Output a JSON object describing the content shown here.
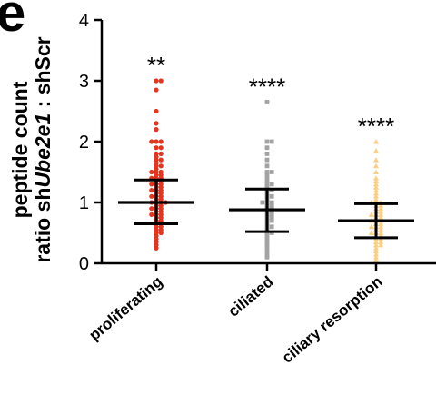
{
  "panel_label": "e",
  "chart_data": {
    "type": "scatter",
    "plot_style": "dot plot with mean and SD bars",
    "ylabel_line1": "peptide count",
    "ylabel_line2_prefix": "ratio sh",
    "ylabel_line2_gene": "Ube2e1",
    "ylabel_line2_suffix": " : shScr",
    "ylim": [
      0,
      4
    ],
    "yticks": [
      "0",
      "1",
      "2",
      "3",
      "4"
    ],
    "categories": [
      "proliferating",
      "ciliated",
      "ciliary resorption"
    ],
    "series": [
      {
        "mean": 1.0,
        "sd_low": 0.65,
        "sd_high": 1.37,
        "max": 3.0,
        "min": 0.25,
        "significance": "**",
        "color": "#e8341c",
        "marker": "circle",
        "values": [
          3.0,
          3.0,
          2.85,
          2.5,
          2.3,
          2.2,
          2.0,
          2.0,
          2.0,
          1.9,
          1.9,
          1.8,
          1.8,
          1.75,
          1.7,
          1.7,
          1.65,
          1.6,
          1.6,
          1.55,
          1.5,
          1.5,
          1.5,
          1.45,
          1.45,
          1.4,
          1.4,
          1.4,
          1.35,
          1.35,
          1.3,
          1.3,
          1.3,
          1.25,
          1.25,
          1.2,
          1.2,
          1.2,
          1.15,
          1.15,
          1.1,
          1.1,
          1.1,
          1.05,
          1.05,
          1.0,
          1.0,
          1.0,
          1.0,
          0.95,
          0.95,
          0.9,
          0.9,
          0.9,
          0.85,
          0.85,
          0.8,
          0.8,
          0.8,
          0.75,
          0.75,
          0.7,
          0.7,
          0.65,
          0.65,
          0.6,
          0.6,
          0.55,
          0.55,
          0.5,
          0.5,
          0.45,
          0.4,
          0.35,
          0.3,
          0.25
        ]
      },
      {
        "mean": 0.88,
        "sd_low": 0.52,
        "sd_high": 1.22,
        "max": 2.65,
        "min": 0.1,
        "significance": "****",
        "color": "#a3a3a3",
        "marker": "square",
        "values": [
          2.65,
          2.0,
          2.0,
          1.9,
          1.8,
          1.7,
          1.6,
          1.5,
          1.5,
          1.45,
          1.4,
          1.35,
          1.3,
          1.3,
          1.25,
          1.2,
          1.2,
          1.15,
          1.1,
          1.1,
          1.05,
          1.0,
          1.0,
          1.0,
          0.95,
          0.95,
          0.9,
          0.9,
          0.85,
          0.85,
          0.8,
          0.8,
          0.75,
          0.75,
          0.7,
          0.7,
          0.65,
          0.6,
          0.6,
          0.55,
          0.5,
          0.5,
          0.45,
          0.4,
          0.35,
          0.3,
          0.25,
          0.2,
          0.15,
          0.1
        ]
      },
      {
        "mean": 0.7,
        "sd_low": 0.42,
        "sd_high": 0.98,
        "max": 2.0,
        "min": 0.05,
        "significance": "****",
        "color": "#fbcf83",
        "marker": "triangle",
        "values": [
          2.0,
          1.85,
          1.7,
          1.6,
          1.5,
          1.4,
          1.35,
          1.3,
          1.25,
          1.2,
          1.15,
          1.1,
          1.05,
          1.0,
          1.0,
          1.0,
          0.95,
          0.95,
          0.9,
          0.9,
          0.85,
          0.85,
          0.8,
          0.8,
          0.8,
          0.75,
          0.75,
          0.7,
          0.7,
          0.7,
          0.65,
          0.65,
          0.6,
          0.6,
          0.6,
          0.55,
          0.55,
          0.5,
          0.5,
          0.5,
          0.45,
          0.45,
          0.4,
          0.4,
          0.35,
          0.35,
          0.3,
          0.3,
          0.25,
          0.2,
          0.15,
          0.1,
          0.05
        ]
      }
    ]
  }
}
